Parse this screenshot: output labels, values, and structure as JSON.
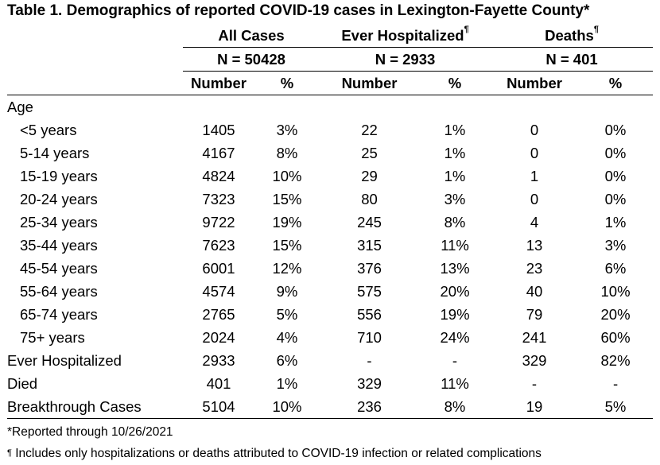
{
  "title": "Table 1. Demographics of reported COVID-19 cases in Lexington-Fayette County*",
  "groups": [
    {
      "name": "All Cases",
      "mark": "",
      "n": "N = 50428"
    },
    {
      "name": "Ever Hospitalized",
      "mark": "¶",
      "n": "N = 2933"
    },
    {
      "name": "Deaths",
      "mark": "¶",
      "n": "N = 401"
    }
  ],
  "col_headers": {
    "number": "Number",
    "percent": "%"
  },
  "section_age": "Age",
  "rows": [
    {
      "label": "<5 years",
      "c": [
        "1405",
        "3%",
        "22",
        "1%",
        "0",
        "0%"
      ]
    },
    {
      "label": "5-14 years",
      "c": [
        "4167",
        "8%",
        "25",
        "1%",
        "0",
        "0%"
      ]
    },
    {
      "label": "15-19 years",
      "c": [
        "4824",
        "10%",
        "29",
        "1%",
        "1",
        "0%"
      ]
    },
    {
      "label": "20-24 years",
      "c": [
        "7323",
        "15%",
        "80",
        "3%",
        "0",
        "0%"
      ]
    },
    {
      "label": "25-34 years",
      "c": [
        "9722",
        "19%",
        "245",
        "8%",
        "4",
        "1%"
      ]
    },
    {
      "label": "35-44 years",
      "c": [
        "7623",
        "15%",
        "315",
        "11%",
        "13",
        "3%"
      ]
    },
    {
      "label": "45-54 years",
      "c": [
        "6001",
        "12%",
        "376",
        "13%",
        "23",
        "6%"
      ]
    },
    {
      "label": "55-64 years",
      "c": [
        "4574",
        "9%",
        "575",
        "20%",
        "40",
        "10%"
      ]
    },
    {
      "label": "65-74 years",
      "c": [
        "2765",
        "5%",
        "556",
        "19%",
        "79",
        "20%"
      ]
    },
    {
      "label": "75+ years",
      "c": [
        "2024",
        "4%",
        "710",
        "24%",
        "241",
        "60%"
      ]
    }
  ],
  "summary_rows": [
    {
      "label": "Ever Hospitalized",
      "c": [
        "2933",
        "6%",
        "-",
        "-",
        "329",
        "82%"
      ]
    },
    {
      "label": "Died",
      "c": [
        "401",
        "1%",
        "329",
        "11%",
        "-",
        "-"
      ]
    },
    {
      "label": "Breakthrough Cases",
      "c": [
        "5104",
        "10%",
        "236",
        "8%",
        "19",
        "5%"
      ]
    }
  ],
  "footnotes": {
    "reported": "*Reported through 10/26/2021",
    "pilcrow_mark": "¶",
    "includes": "Includes only hospitalizations or deaths attributed to COVID-19 infection or related complications"
  }
}
